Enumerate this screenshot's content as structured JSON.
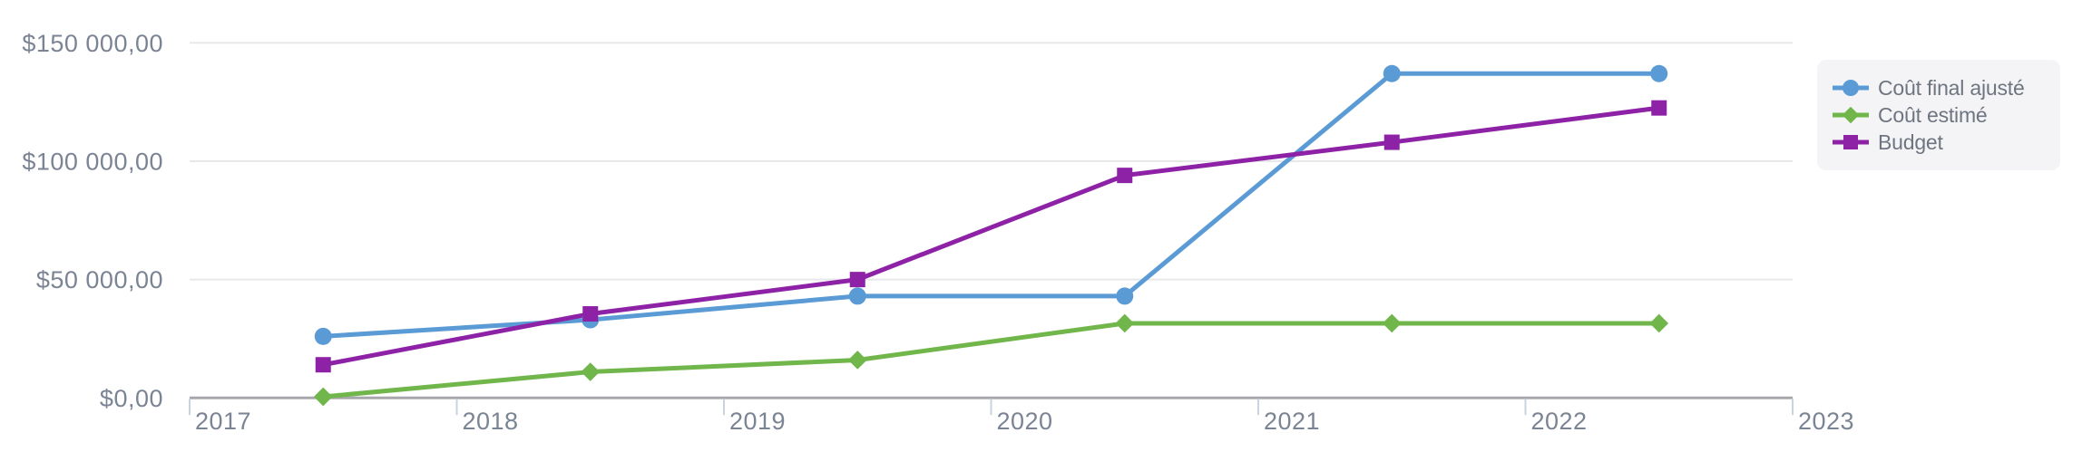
{
  "chart_data": {
    "type": "line",
    "title": "",
    "x": [
      2017.5,
      2018.5,
      2019.5,
      2020.5,
      2021.5,
      2022.5
    ],
    "x_axis": {
      "ticks": [
        2017,
        2018,
        2019,
        2020,
        2021,
        2022,
        2023
      ],
      "range": [
        2017,
        2023
      ]
    },
    "y_axis": {
      "range": [
        0,
        150000
      ],
      "ticks": [
        {
          "value": 0,
          "label": "$0,00"
        },
        {
          "value": 50000,
          "label": "$50 000,00"
        },
        {
          "value": 100000,
          "label": "$100 000,00"
        },
        {
          "value": 150000,
          "label": "$150 000,00"
        }
      ]
    },
    "grid": "horizontal-only",
    "legend_position": "right",
    "series": [
      {
        "name": "Coût final ajusté",
        "color": "#5B9BD5",
        "marker": "circle",
        "values": [
          26000,
          33000,
          43000,
          43000,
          137000,
          137000
        ]
      },
      {
        "name": "Coût estimé",
        "color": "#70B64B",
        "marker": "diamond",
        "values": [
          500,
          11000,
          16000,
          31500,
          31500,
          31500
        ]
      },
      {
        "name": "Budget",
        "color": "#8E22A6",
        "marker": "square",
        "values": [
          14000,
          35500,
          50000,
          94000,
          108000,
          122500
        ]
      }
    ]
  },
  "colors": {
    "background": "#FFFFFF",
    "axis_line": "#A8A8AC",
    "grid_line": "#E8E8EA",
    "tick_mark": "#CBD2E0",
    "axis_label": "#7B8494",
    "legend_text": "#6F7580",
    "legend_bg": "#F4F4F6"
  }
}
